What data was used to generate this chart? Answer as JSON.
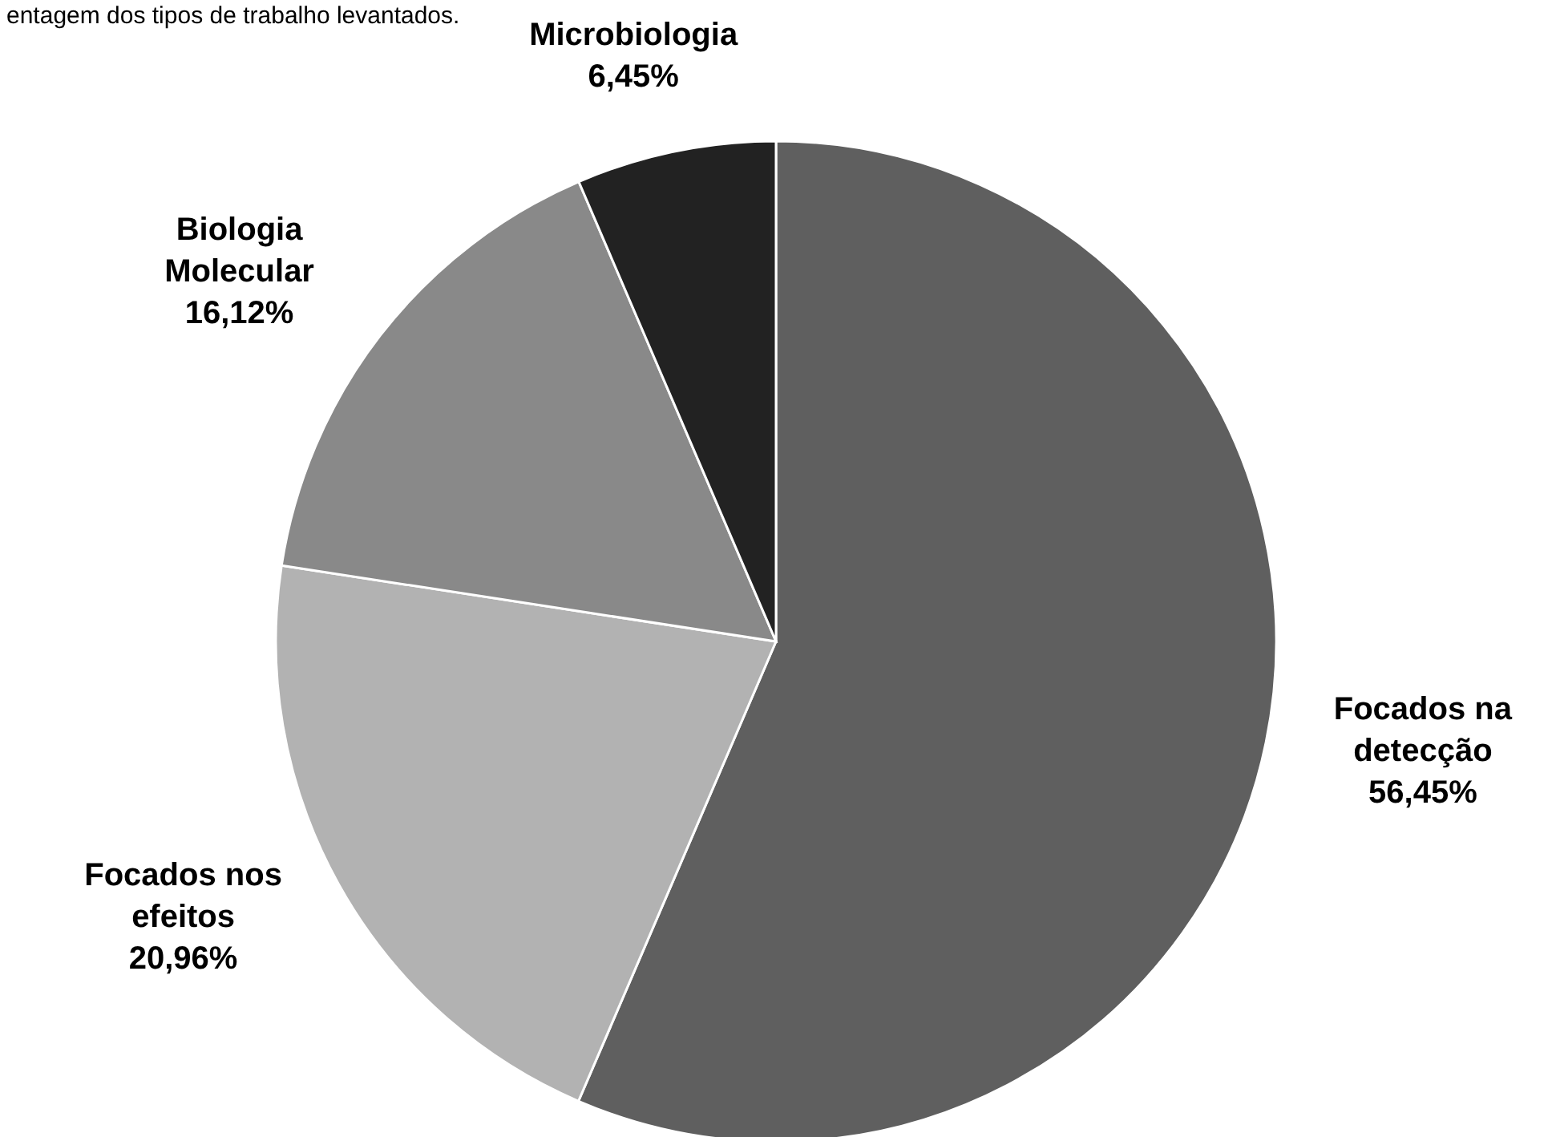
{
  "chart_data": {
    "type": "pie",
    "title": "entagem dos tipos de trabalho levantados.",
    "categories": [
      "Focados na detecção",
      "Focados nos efeitos",
      "Biologia Molecular",
      "Microbiologia"
    ],
    "values": [
      56.45,
      20.96,
      16.12,
      6.45
    ],
    "colors": [
      "#5f5f5f",
      "#b2b2b2",
      "#898989",
      "#222222"
    ],
    "value_labels": [
      "56,45%",
      "20,96%",
      "16,12%",
      "6,45%"
    ],
    "legend": false
  }
}
